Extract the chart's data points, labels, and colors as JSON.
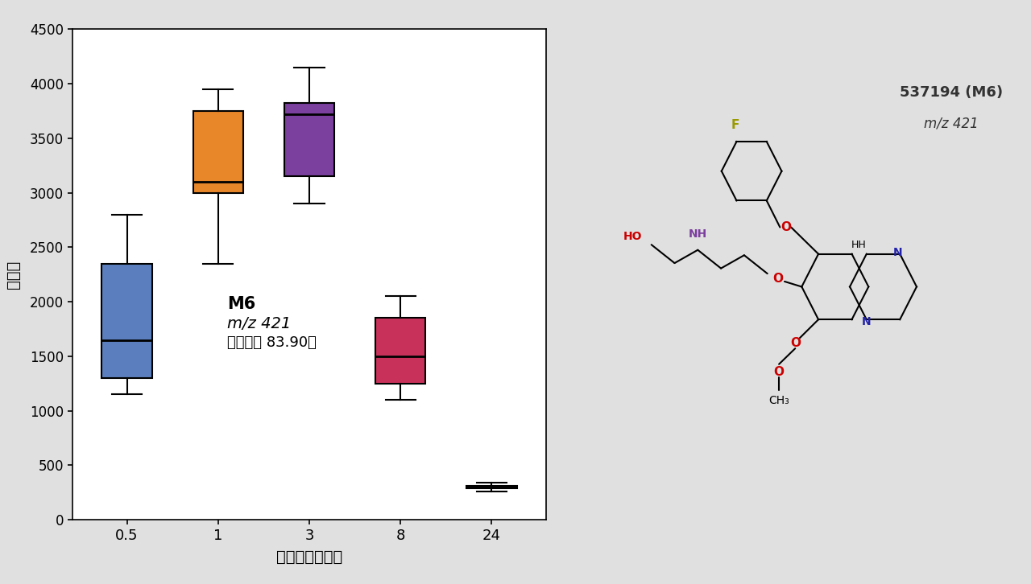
{
  "timepoints": [
    1,
    2,
    3,
    4,
    5
  ],
  "timepoint_labels": [
    "0.5",
    "1",
    "3",
    "8",
    "24"
  ],
  "boxes": [
    {
      "label": "0.5",
      "whislo": 1150,
      "q1": 1300,
      "med": 1650,
      "q3": 2350,
      "whishi": 2800,
      "color": "#5b7fbe"
    },
    {
      "label": "1",
      "whislo": 2350,
      "q1": 3000,
      "med": 3100,
      "q3": 3750,
      "whishi": 3950,
      "color": "#e8862a"
    },
    {
      "label": "3",
      "whislo": 2900,
      "q1": 3150,
      "med": 3720,
      "q3": 3820,
      "whishi": 4150,
      "color": "#7b3f9e"
    },
    {
      "label": "8",
      "whislo": 1100,
      "q1": 1250,
      "med": 1500,
      "q3": 1850,
      "whishi": 2050,
      "color": "#c8325a"
    },
    {
      "label": "24",
      "whislo": 260,
      "q1": 290,
      "med": 300,
      "q3": 310,
      "whishi": 340,
      "color": "#222222"
    }
  ],
  "ylabel": "存在量",
  "xlabel": "タイムポイント",
  "ylim": [
    0,
    4500
  ],
  "yticks": [
    0,
    500,
    1000,
    1500,
    2000,
    2500,
    3000,
    3500,
    4000,
    4500
  ],
  "annotation_bold": "M6",
  "annotation_italic": "m/z 421",
  "annotation_normal": "（スコア 83.90）",
  "bg_color": "#e0e0e0",
  "plot_bg_color": "#ffffff",
  "box_width": 0.55,
  "linewidth": 1.5,
  "right_title": "537194 (M6)",
  "right_subtitle": "m/z 421"
}
